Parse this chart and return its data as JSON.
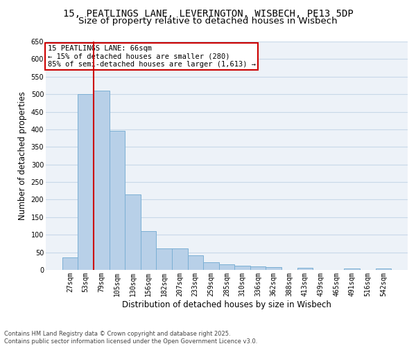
{
  "title_line1": "15, PEATLINGS LANE, LEVERINGTON, WISBECH, PE13 5DP",
  "title_line2": "Size of property relative to detached houses in Wisbech",
  "xlabel": "Distribution of detached houses by size in Wisbech",
  "ylabel": "Number of detached properties",
  "categories": [
    "27sqm",
    "53sqm",
    "79sqm",
    "105sqm",
    "130sqm",
    "156sqm",
    "182sqm",
    "207sqm",
    "233sqm",
    "259sqm",
    "285sqm",
    "310sqm",
    "336sqm",
    "362sqm",
    "388sqm",
    "413sqm",
    "439sqm",
    "465sqm",
    "491sqm",
    "516sqm",
    "542sqm"
  ],
  "values": [
    35,
    500,
    510,
    395,
    215,
    110,
    62,
    62,
    42,
    22,
    15,
    12,
    9,
    8,
    0,
    5,
    0,
    0,
    4,
    0,
    3
  ],
  "bar_color": "#b8d0e8",
  "bar_edge_color": "#7bafd4",
  "bar_linewidth": 0.7,
  "vline_color": "#cc0000",
  "vline_x_index": 1.5,
  "annotation_title": "15 PEATLINGS LANE: 66sqm",
  "annotation_line2": "← 15% of detached houses are smaller (280)",
  "annotation_line3": "85% of semi-detached houses are larger (1,613) →",
  "annotation_box_color": "#cc0000",
  "annotation_bg": "#ffffff",
  "ylim": [
    0,
    650
  ],
  "yticks": [
    0,
    50,
    100,
    150,
    200,
    250,
    300,
    350,
    400,
    450,
    500,
    550,
    600,
    650
  ],
  "grid_color": "#c8d8e8",
  "bg_color": "#edf2f8",
  "footer": "Contains HM Land Registry data © Crown copyright and database right 2025.\nContains public sector information licensed under the Open Government Licence v3.0.",
  "title_fontsize": 10,
  "subtitle_fontsize": 9.5,
  "axis_label_fontsize": 8.5,
  "tick_fontsize": 7,
  "annotation_fontsize": 7.5,
  "footer_fontsize": 6
}
